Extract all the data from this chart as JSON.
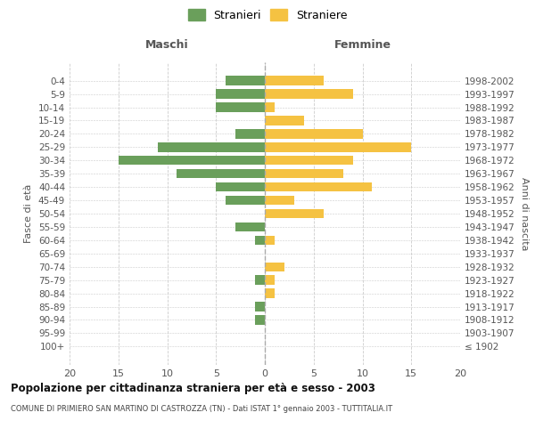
{
  "age_groups": [
    "100+",
    "95-99",
    "90-94",
    "85-89",
    "80-84",
    "75-79",
    "70-74",
    "65-69",
    "60-64",
    "55-59",
    "50-54",
    "45-49",
    "40-44",
    "35-39",
    "30-34",
    "25-29",
    "20-24",
    "15-19",
    "10-14",
    "5-9",
    "0-4"
  ],
  "birth_years": [
    "≤ 1902",
    "1903-1907",
    "1908-1912",
    "1913-1917",
    "1918-1922",
    "1923-1927",
    "1928-1932",
    "1933-1937",
    "1938-1942",
    "1943-1947",
    "1948-1952",
    "1953-1957",
    "1958-1962",
    "1963-1967",
    "1968-1972",
    "1973-1977",
    "1978-1982",
    "1983-1987",
    "1988-1992",
    "1993-1997",
    "1998-2002"
  ],
  "maschi": [
    0,
    0,
    1,
    1,
    0,
    1,
    0,
    0,
    1,
    3,
    0,
    4,
    5,
    9,
    15,
    11,
    3,
    0,
    5,
    5,
    4
  ],
  "femmine": [
    0,
    0,
    0,
    0,
    1,
    1,
    2,
    0,
    1,
    0,
    6,
    3,
    11,
    8,
    9,
    15,
    10,
    4,
    1,
    9,
    6
  ],
  "color_maschi": "#6a9f5b",
  "color_femmine": "#f5c242",
  "title": "Popolazione per cittadinanza straniera per età e sesso - 2003",
  "subtitle": "COMUNE DI PRIMIERO SAN MARTINO DI CASTROZZA (TN) - Dati ISTAT 1° gennaio 2003 - TUTTITALIA.IT",
  "xlabel_left": "Maschi",
  "xlabel_right": "Femmine",
  "ylabel_left": "Fasce di età",
  "ylabel_right": "Anni di nascita",
  "legend_maschi": "Stranieri",
  "legend_femmine": "Straniere",
  "xlim": 20,
  "background_color": "#ffffff",
  "grid_color": "#cccccc"
}
